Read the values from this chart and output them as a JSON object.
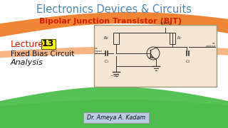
{
  "title": "Electronics Devices & Circuits",
  "subtitle": "Bipolar Junction Transistor (BJT)",
  "lecture_label": "Lecture",
  "lecture_num": "13",
  "line1": "Fixed Bias Circuit",
  "line2": "Analysis",
  "footer": "Dr. Ameya A. Kadam",
  "bg_color": "#ffffff",
  "title_color": "#4a86b8",
  "subtitle_color": "#cc2200",
  "lecture_color": "#cc2200",
  "lecture_box_color": "#ffff00",
  "text_color": "#111111",
  "footer_bg": "#b8cce4",
  "stripe_orange": "#f07820",
  "stripe_green": "#44bb44",
  "circuit_bg": "#f5e6d3"
}
